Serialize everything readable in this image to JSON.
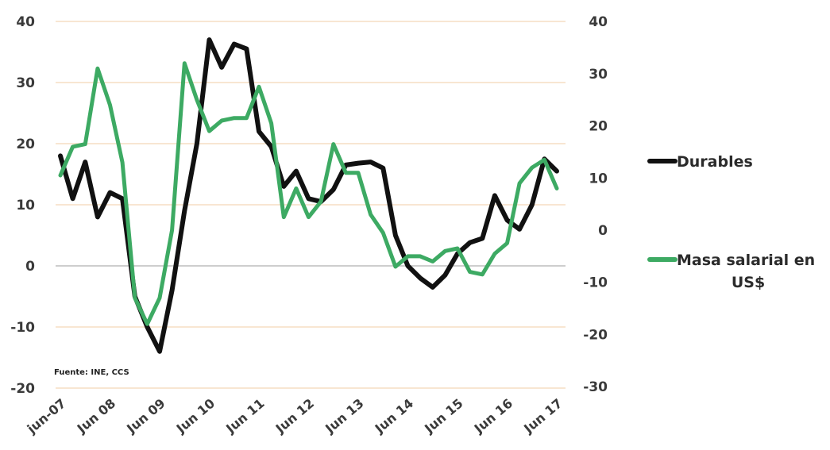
{
  "chart_data": {
    "type": "line",
    "source_note": "Fuente: INE, CCS",
    "x": [
      "jun-07",
      "Jun 08",
      "Jun 09",
      "Jun 10",
      "Jun 11",
      "Jun 12",
      "Jun 13",
      "Jun 14",
      "Jun 15",
      "Jun 16",
      "Jun 17"
    ],
    "left_axis": {
      "ylim": [
        -20,
        40
      ],
      "ticks": [
        40,
        30,
        20,
        10,
        0,
        -10,
        -20
      ]
    },
    "right_axis": {
      "ylim": [
        -30,
        40
      ],
      "ticks": [
        40,
        30,
        20,
        10,
        0,
        -10,
        -20,
        -30
      ]
    },
    "grid": true,
    "legend_position": "right",
    "series": [
      {
        "name": "Durables",
        "axis": "left",
        "color": "#111111",
        "points": [
          [
            0.0,
            18
          ],
          [
            0.25,
            11
          ],
          [
            0.5,
            17
          ],
          [
            0.75,
            8
          ],
          [
            1.0,
            12
          ],
          [
            1.25,
            11
          ],
          [
            1.5,
            -5
          ],
          [
            1.75,
            -10
          ],
          [
            2.0,
            -14
          ],
          [
            2.25,
            -4
          ],
          [
            2.5,
            9
          ],
          [
            2.75,
            20
          ],
          [
            3.0,
            37
          ],
          [
            3.25,
            32.5
          ],
          [
            3.5,
            36.3
          ],
          [
            3.75,
            35.5
          ],
          [
            4.0,
            22
          ],
          [
            4.25,
            19.5
          ],
          [
            4.5,
            13
          ],
          [
            4.75,
            15.5
          ],
          [
            5.0,
            11
          ],
          [
            5.25,
            10.5
          ],
          [
            5.5,
            12.5
          ],
          [
            5.75,
            16.5
          ],
          [
            6.0,
            16.8
          ],
          [
            6.25,
            17
          ],
          [
            6.5,
            16
          ],
          [
            6.75,
            5
          ],
          [
            7.0,
            0
          ],
          [
            7.25,
            -2
          ],
          [
            7.5,
            -3.5
          ],
          [
            7.75,
            -1.5
          ],
          [
            8.0,
            2
          ],
          [
            8.25,
            3.8
          ],
          [
            8.5,
            4.5
          ],
          [
            8.75,
            11.5
          ],
          [
            9.0,
            7.5
          ],
          [
            9.25,
            6
          ],
          [
            9.5,
            10
          ],
          [
            9.75,
            17.5
          ],
          [
            10.0,
            15.5
          ]
        ]
      },
      {
        "name": "Masa salarial en US$",
        "axis": "right",
        "color": "#3daa63",
        "points": [
          [
            0.0,
            10.5
          ],
          [
            0.25,
            16
          ],
          [
            0.5,
            16.5
          ],
          [
            0.75,
            31
          ],
          [
            1.0,
            24
          ],
          [
            1.25,
            13
          ],
          [
            1.5,
            -13
          ],
          [
            1.75,
            -18
          ],
          [
            2.0,
            -13
          ],
          [
            2.25,
            0
          ],
          [
            2.5,
            32
          ],
          [
            2.75,
            25
          ],
          [
            3.0,
            19
          ],
          [
            3.25,
            21
          ],
          [
            3.5,
            21.5
          ],
          [
            3.75,
            21.5
          ],
          [
            4.0,
            27.5
          ],
          [
            4.25,
            20.5
          ],
          [
            4.5,
            2.5
          ],
          [
            4.75,
            8
          ],
          [
            5.0,
            2.5
          ],
          [
            5.25,
            5.5
          ],
          [
            5.5,
            16.5
          ],
          [
            5.75,
            11
          ],
          [
            6.0,
            11
          ],
          [
            6.25,
            3
          ],
          [
            6.5,
            -0.5
          ],
          [
            6.75,
            -7
          ],
          [
            7.0,
            -5
          ],
          [
            7.25,
            -5
          ],
          [
            7.5,
            -6
          ],
          [
            7.75,
            -4
          ],
          [
            8.0,
            -3.5
          ],
          [
            8.25,
            -8
          ],
          [
            8.5,
            -8.5
          ],
          [
            8.75,
            -4.5
          ],
          [
            9.0,
            -2.5
          ],
          [
            9.25,
            9
          ],
          [
            9.5,
            12
          ],
          [
            9.75,
            13.5
          ],
          [
            10.0,
            8
          ]
        ]
      }
    ]
  },
  "legend": {
    "items": [
      {
        "line1": "Durables",
        "line2": "",
        "color": "#111111"
      },
      {
        "line1": "Masa salarial en",
        "line2": "US$",
        "color": "#3daa63"
      }
    ]
  }
}
